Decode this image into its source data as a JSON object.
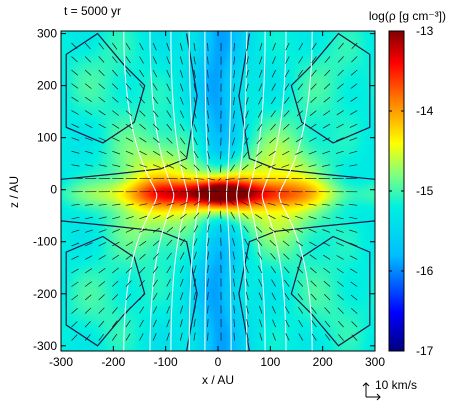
{
  "chart_data": {
    "type": "heatmap",
    "annotation_time": "t = 5000 yr",
    "xlabel": "x / AU",
    "ylabel": "z / AU",
    "xlim": [
      -300,
      300
    ],
    "ylim": [
      -310,
      305
    ],
    "xticks": [
      -300,
      -200,
      -100,
      0,
      100,
      200,
      300
    ],
    "yticks": [
      -300,
      -200,
      -100,
      0,
      100,
      200,
      300
    ],
    "colorbar": {
      "label": "log(ρ [g cm⁻³])",
      "range": [
        -17,
        -13
      ],
      "ticks": [
        -17,
        -16,
        -15,
        -14,
        -13
      ]
    },
    "velocity_scale_label": "10 km/s",
    "field": {
      "description": "log density in x-z plane",
      "midplane_peak": -13.0,
      "polar_min": -15.5,
      "background": -15.0
    }
  }
}
